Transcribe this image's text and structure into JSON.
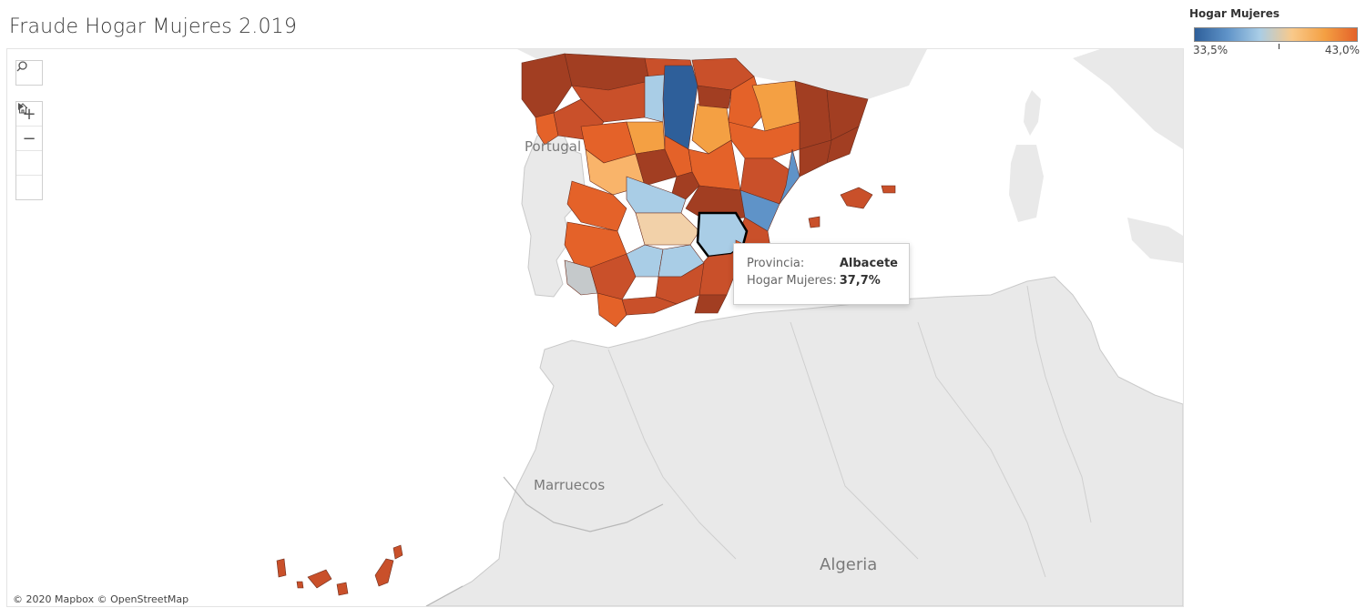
{
  "title": "Fraude Hogar Mujeres 2.019",
  "legend": {
    "title": "Hogar Mujeres",
    "min_label": "33,5%",
    "max_label": "43,0%",
    "min_value": 33.5,
    "max_value": 43.0,
    "colors": [
      "#2e5f9a",
      "#5f93c8",
      "#a9cde6",
      "#f9c98a",
      "#f4a043",
      "#e46229"
    ]
  },
  "map": {
    "place_labels": {
      "portugal": "Portugal",
      "marruecos": "Marruecos",
      "algeria": "Algeria"
    },
    "attribution": "© 2020 Mapbox © OpenStreetMap",
    "toolbar": {
      "search_icon": "search-icon",
      "zoom_in_icon": "plus-icon",
      "zoom_out_icon": "minus-icon",
      "home_icon": "home-icon",
      "pan_icon": "play-icon"
    }
  },
  "tooltip": {
    "provincia_label": "Provincia:",
    "provincia_value": "Albacete",
    "hogar_label": "Hogar Mujeres:",
    "hogar_value": "37,7%"
  },
  "colors": {
    "sea": "#ffffff",
    "land": "#e9e9e9",
    "border": "#c9c9c9",
    "no_data": "#c5c9cb",
    "dark_red": "#a23e22",
    "red_orange": "#c9502a"
  }
}
